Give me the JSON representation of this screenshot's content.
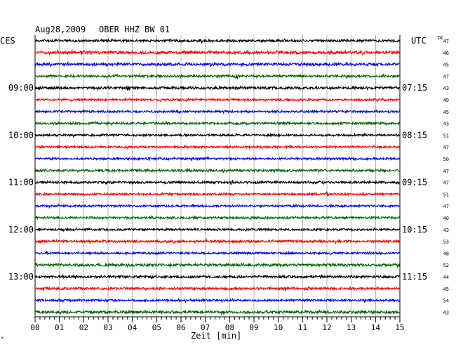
{
  "header": {
    "date": "Aug28,2009",
    "station": "OBER HHZ BW 01",
    "left_tz": "CES",
    "right_tz": "UTC",
    "dc_label": "DC"
  },
  "footer": {
    "xlabel": "Zeit [min]",
    "mark": "*"
  },
  "chart_data": {
    "type": "line",
    "title": "Aug28,2009   OBER HHZ BW 01",
    "xlabel": "Zeit [min]",
    "xlim": [
      0,
      15
    ],
    "x_tick_labels": [
      "00",
      "01",
      "02",
      "03",
      "04",
      "05",
      "06",
      "07",
      "08",
      "09",
      "10",
      "11",
      "12",
      "13",
      "14",
      "15"
    ],
    "vertical_gridlines": true,
    "left_time_labels": [
      {
        "row": 4,
        "label": "09:00"
      },
      {
        "row": 8,
        "label": "10:00"
      },
      {
        "row": 12,
        "label": "11:00"
      },
      {
        "row": 16,
        "label": "12:00"
      },
      {
        "row": 20,
        "label": "13:00"
      }
    ],
    "right_time_labels": [
      {
        "row": 4,
        "label": "07:15"
      },
      {
        "row": 8,
        "label": "08:15"
      },
      {
        "row": 12,
        "label": "09:15"
      },
      {
        "row": 16,
        "label": "10:15"
      },
      {
        "row": 20,
        "label": "11:15"
      }
    ],
    "trace_colors": [
      "#000000",
      "#ff0000",
      "#0000ff",
      "#006400"
    ],
    "traces": [
      {
        "row": 0,
        "dc": "47",
        "amplitude": 1.6,
        "events": []
      },
      {
        "row": 1,
        "dc": "46",
        "amplitude": 2.0,
        "events": []
      },
      {
        "row": 2,
        "dc": "45",
        "amplitude": 1.8,
        "events": [
          {
            "minute": 3.9,
            "size": 2
          }
        ]
      },
      {
        "row": 3,
        "dc": "47",
        "amplitude": 1.6,
        "events": [
          {
            "minute": 8.3,
            "size": 6
          }
        ]
      },
      {
        "row": 4,
        "dc": "43",
        "amplitude": 1.8,
        "events": [
          {
            "minute": 3.8,
            "size": 3
          }
        ]
      },
      {
        "row": 5,
        "dc": "49",
        "amplitude": 1.4,
        "events": []
      },
      {
        "row": 6,
        "dc": "45",
        "amplitude": 1.4,
        "events": []
      },
      {
        "row": 7,
        "dc": "43",
        "amplitude": 1.5,
        "events": []
      },
      {
        "row": 8,
        "dc": "51",
        "amplitude": 1.4,
        "events": [
          {
            "minute": 10.0,
            "size": 2
          }
        ]
      },
      {
        "row": 9,
        "dc": "47",
        "amplitude": 1.4,
        "events": []
      },
      {
        "row": 10,
        "dc": "50",
        "amplitude": 1.4,
        "events": [
          {
            "minute": 4.7,
            "size": 3
          }
        ]
      },
      {
        "row": 11,
        "dc": "47",
        "amplitude": 1.6,
        "events": []
      },
      {
        "row": 12,
        "dc": "47",
        "amplitude": 1.6,
        "events": [
          {
            "minute": 8.1,
            "size": 3
          },
          {
            "minute": 9.9,
            "size": 2
          }
        ]
      },
      {
        "row": 13,
        "dc": "51",
        "amplitude": 1.4,
        "events": [
          {
            "minute": 12.0,
            "size": 3
          }
        ]
      },
      {
        "row": 14,
        "dc": "47",
        "amplitude": 1.4,
        "events": []
      },
      {
        "row": 15,
        "dc": "40",
        "amplitude": 1.5,
        "events": [
          {
            "minute": 11.2,
            "size": 3
          }
        ]
      },
      {
        "row": 16,
        "dc": "43",
        "amplitude": 1.4,
        "events": []
      },
      {
        "row": 17,
        "dc": "53",
        "amplitude": 1.6,
        "events": []
      },
      {
        "row": 18,
        "dc": "48",
        "amplitude": 1.4,
        "events": []
      },
      {
        "row": 19,
        "dc": "52",
        "amplitude": 1.8,
        "events": []
      },
      {
        "row": 20,
        "dc": "44",
        "amplitude": 1.6,
        "events": []
      },
      {
        "row": 21,
        "dc": "45",
        "amplitude": 1.6,
        "events": [
          {
            "minute": 10.3,
            "size": 3
          }
        ]
      },
      {
        "row": 22,
        "dc": "54",
        "amplitude": 1.4,
        "events": []
      },
      {
        "row": 23,
        "dc": "43",
        "amplitude": 1.8,
        "events": [
          {
            "minute": 10.4,
            "size": 2
          }
        ]
      }
    ]
  }
}
